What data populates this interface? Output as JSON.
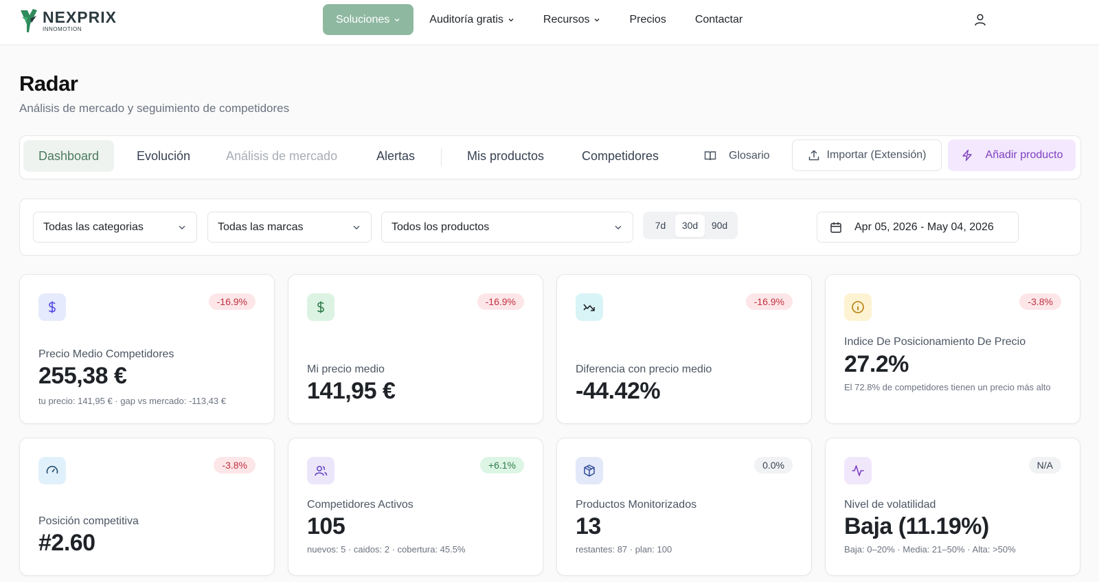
{
  "brand": {
    "name": "NEXPRIX",
    "tagline": "INNOMOTION"
  },
  "nav": {
    "items": [
      {
        "label": "Soluciones",
        "dropdown": true,
        "active": true
      },
      {
        "label": "Auditoría gratis",
        "dropdown": true
      },
      {
        "label": "Recursos",
        "dropdown": true
      },
      {
        "label": "Precios"
      },
      {
        "label": "Contactar"
      }
    ]
  },
  "page": {
    "title": "Radar",
    "subtitle": "Análisis de mercado y seguimiento de competidores"
  },
  "tabs": {
    "items": [
      {
        "label": "Dashboard",
        "state": "active"
      },
      {
        "label": "Evolución"
      },
      {
        "label": "Análisis de mercado",
        "state": "disabled"
      },
      {
        "label": "Alertas"
      },
      {
        "label": "Mis productos"
      },
      {
        "label": "Competidores"
      }
    ],
    "glossary": "Glosario",
    "import_label": "Importar (Extensión)",
    "add_label": "Añadir producto"
  },
  "filters": {
    "category": "Todas las categorias",
    "brand": "Todas las marcas",
    "product": "Todos los productos",
    "ranges": [
      "7d",
      "30d",
      "90d"
    ],
    "active_range": "30d",
    "date_range": "Apr 05, 2026 - May 04, 2026"
  },
  "cards": [
    {
      "icon": "dollar-icon",
      "badge": "-16.9%",
      "label": "Precio Medio Competidores",
      "value": "255,38 €",
      "note": "tu precio: 141,95 € · gap vs mercado: -113,43 €"
    },
    {
      "icon": "dollar-icon",
      "badge": "-16.9%",
      "label": "Mi precio medio",
      "value": "141,95 €",
      "note": ""
    },
    {
      "icon": "trend-icon",
      "badge": "-16.9%",
      "label": "Diferencia con precio medio",
      "value": "-44.42%",
      "note": ""
    },
    {
      "icon": "info-icon",
      "badge": "-3.8%",
      "label": "Indice De Posicionamiento De Precio",
      "value": "27.2%",
      "note": "El 72.8% de competidores tienen un precio más alto"
    },
    {
      "icon": "gauge-icon",
      "badge": "-3.8%",
      "label": "Posición competitiva",
      "value": "#2.60",
      "note": ""
    },
    {
      "icon": "users-icon",
      "badge": "+6.1%",
      "label": "Competidores Activos",
      "value": "105",
      "note": "nuevos: 5 · caidos: 2 · cobertura: 45.5%"
    },
    {
      "icon": "box-icon",
      "badge": "0.0%",
      "label": "Productos Monitorizados",
      "value": "13",
      "note": "restantes: 87 · plan: 100"
    },
    {
      "icon": "activity-icon",
      "badge": "N/A",
      "label": "Nivel de volatilidad",
      "value": "Baja (11.19%)",
      "note": "Baja: 0–20% · Media: 21–50% · Alta: >50%"
    }
  ],
  "colors": {
    "accent_green": "#8fb8a0",
    "tab_active_text": "#4b7a5f",
    "add_button_bg": "#f3e8fd",
    "add_button_text": "#7e3fbf",
    "badge_negative": "#c0303f",
    "badge_positive": "#2d7a49"
  }
}
